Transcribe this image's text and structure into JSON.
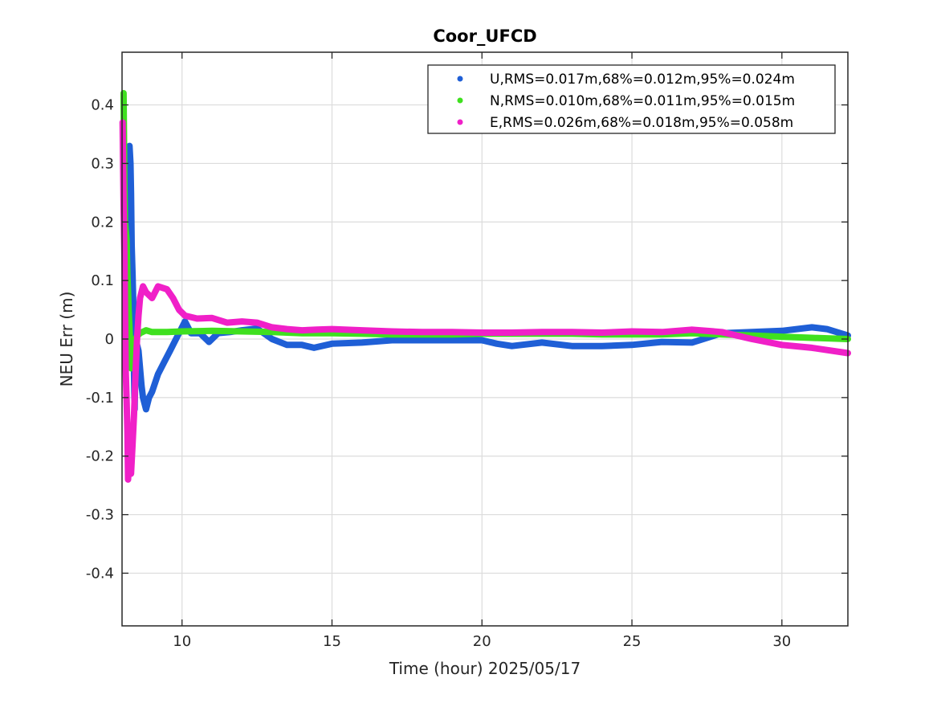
{
  "chart_data": {
    "type": "scatter",
    "title": "Coor_UFCD",
    "xlabel": "Time (hour)  2025/05/17",
    "ylabel": "NEU Err (m)",
    "xlim": [
      8,
      32.2
    ],
    "ylim": [
      -0.49,
      0.49
    ],
    "xticks": [
      10,
      15,
      20,
      25,
      30
    ],
    "xtick_labels": [
      "10",
      "15",
      "20",
      "25",
      "30"
    ],
    "yticks": [
      -0.4,
      -0.3,
      -0.2,
      -0.1,
      0,
      0.1,
      0.2,
      0.3,
      0.4
    ],
    "ytick_labels": [
      "-0.4",
      "-0.3",
      "-0.2",
      "-0.1",
      "0",
      "0.1",
      "0.2",
      "0.3",
      "0.4"
    ],
    "grid": true,
    "legend_position": "top-right",
    "series": [
      {
        "name": "U,RMS=0.017m,68%=0.012m,95%=0.024m",
        "color": "#1f5fd6",
        "points": [
          [
            8.1,
            0.29
          ],
          [
            8.15,
            0.31
          ],
          [
            8.2,
            0.2
          ],
          [
            8.25,
            0.33
          ],
          [
            8.28,
            0.3
          ],
          [
            8.3,
            0.25
          ],
          [
            8.32,
            0.16
          ],
          [
            8.35,
            0.11
          ],
          [
            8.38,
            0.05
          ],
          [
            8.4,
            -0.06
          ],
          [
            8.42,
            -0.12
          ],
          [
            8.45,
            -0.03
          ],
          [
            8.5,
            -0.01
          ],
          [
            8.55,
            -0.02
          ],
          [
            8.6,
            -0.05
          ],
          [
            8.65,
            -0.08
          ],
          [
            8.7,
            -0.1
          ],
          [
            8.8,
            -0.12
          ],
          [
            8.9,
            -0.1
          ],
          [
            9.0,
            -0.09
          ],
          [
            9.2,
            -0.06
          ],
          [
            9.4,
            -0.04
          ],
          [
            9.6,
            -0.02
          ],
          [
            9.8,
            0.0
          ],
          [
            10.0,
            0.02
          ],
          [
            10.1,
            0.03
          ],
          [
            10.3,
            0.01
          ],
          [
            10.6,
            0.01
          ],
          [
            10.9,
            -0.005
          ],
          [
            11.2,
            0.01
          ],
          [
            11.6,
            0.012
          ],
          [
            12.0,
            0.015
          ],
          [
            12.5,
            0.018
          ],
          [
            13.0,
            0.0
          ],
          [
            13.5,
            -0.01
          ],
          [
            14.0,
            -0.01
          ],
          [
            14.4,
            -0.015
          ],
          [
            15.0,
            -0.008
          ],
          [
            16.0,
            -0.006
          ],
          [
            17.0,
            -0.002
          ],
          [
            18.0,
            -0.002
          ],
          [
            19.0,
            -0.002
          ],
          [
            20.0,
            -0.002
          ],
          [
            20.5,
            -0.008
          ],
          [
            21.0,
            -0.012
          ],
          [
            22.0,
            -0.006
          ],
          [
            23.0,
            -0.012
          ],
          [
            24.0,
            -0.012
          ],
          [
            25.0,
            -0.01
          ],
          [
            26.0,
            -0.005
          ],
          [
            27.0,
            -0.006
          ],
          [
            28.0,
            0.01
          ],
          [
            29.0,
            0.012
          ],
          [
            30.0,
            0.014
          ],
          [
            31.0,
            0.02
          ],
          [
            31.5,
            0.017
          ],
          [
            32.2,
            0.006
          ]
        ]
      },
      {
        "name": "N,RMS=0.010m,68%=0.011m,95%=0.015m",
        "color": "#3fe01f",
        "points": [
          [
            8.05,
            0.42
          ],
          [
            8.08,
            0.26
          ],
          [
            8.1,
            0.2
          ],
          [
            8.15,
            0.17
          ],
          [
            8.18,
            0.11
          ],
          [
            8.2,
            0.08
          ],
          [
            8.22,
            0.05
          ],
          [
            8.25,
            0.02
          ],
          [
            8.28,
            -0.02
          ],
          [
            8.3,
            -0.05
          ],
          [
            8.35,
            -0.01
          ],
          [
            8.4,
            -0.02
          ],
          [
            8.45,
            0.0
          ],
          [
            8.5,
            0.005
          ],
          [
            8.6,
            0.01
          ],
          [
            8.8,
            0.015
          ],
          [
            9.0,
            0.012
          ],
          [
            9.5,
            0.012
          ],
          [
            10.0,
            0.013
          ],
          [
            11.0,
            0.014
          ],
          [
            12.0,
            0.013
          ],
          [
            13.0,
            0.012
          ],
          [
            14.0,
            0.01
          ],
          [
            15.0,
            0.01
          ],
          [
            16.0,
            0.009
          ],
          [
            17.0,
            0.008
          ],
          [
            18.0,
            0.008
          ],
          [
            19.0,
            0.008
          ],
          [
            20.0,
            0.009
          ],
          [
            21.0,
            0.009
          ],
          [
            22.0,
            0.009
          ],
          [
            23.0,
            0.009
          ],
          [
            24.0,
            0.008
          ],
          [
            25.0,
            0.008
          ],
          [
            26.0,
            0.008
          ],
          [
            27.0,
            0.01
          ],
          [
            28.0,
            0.008
          ],
          [
            29.0,
            0.006
          ],
          [
            30.0,
            0.004
          ],
          [
            31.0,
            0.002
          ],
          [
            32.2,
            0.0
          ]
        ]
      },
      {
        "name": "E,RMS=0.026m,68%=0.018m,95%=0.058m",
        "color": "#f020c8",
        "points": [
          [
            8.02,
            0.37
          ],
          [
            8.05,
            0.23
          ],
          [
            8.08,
            0.14
          ],
          [
            8.1,
            0.05
          ],
          [
            8.12,
            -0.05
          ],
          [
            8.15,
            -0.1
          ],
          [
            8.18,
            -0.16
          ],
          [
            8.2,
            -0.24
          ],
          [
            8.25,
            -0.2
          ],
          [
            8.3,
            -0.23
          ],
          [
            8.35,
            -0.18
          ],
          [
            8.4,
            -0.13
          ],
          [
            8.45,
            -0.06
          ],
          [
            8.5,
            0.0
          ],
          [
            8.55,
            0.04
          ],
          [
            8.6,
            0.07
          ],
          [
            8.7,
            0.09
          ],
          [
            8.8,
            0.08
          ],
          [
            9.0,
            0.07
          ],
          [
            9.2,
            0.09
          ],
          [
            9.5,
            0.085
          ],
          [
            9.7,
            0.07
          ],
          [
            9.9,
            0.05
          ],
          [
            10.1,
            0.04
          ],
          [
            10.5,
            0.035
          ],
          [
            11.0,
            0.036
          ],
          [
            11.5,
            0.028
          ],
          [
            12.0,
            0.03
          ],
          [
            12.5,
            0.028
          ],
          [
            13.0,
            0.02
          ],
          [
            13.5,
            0.017
          ],
          [
            14.0,
            0.015
          ],
          [
            14.5,
            0.016
          ],
          [
            15.0,
            0.017
          ],
          [
            16.0,
            0.015
          ],
          [
            17.0,
            0.013
          ],
          [
            18.0,
            0.012
          ],
          [
            19.0,
            0.012
          ],
          [
            20.0,
            0.011
          ],
          [
            21.0,
            0.011
          ],
          [
            22.0,
            0.012
          ],
          [
            23.0,
            0.012
          ],
          [
            24.0,
            0.011
          ],
          [
            25.0,
            0.013
          ],
          [
            26.0,
            0.012
          ],
          [
            27.0,
            0.016
          ],
          [
            28.0,
            0.012
          ],
          [
            29.0,
            0.0
          ],
          [
            30.0,
            -0.01
          ],
          [
            31.0,
            -0.015
          ],
          [
            32.2,
            -0.024
          ]
        ]
      }
    ]
  }
}
